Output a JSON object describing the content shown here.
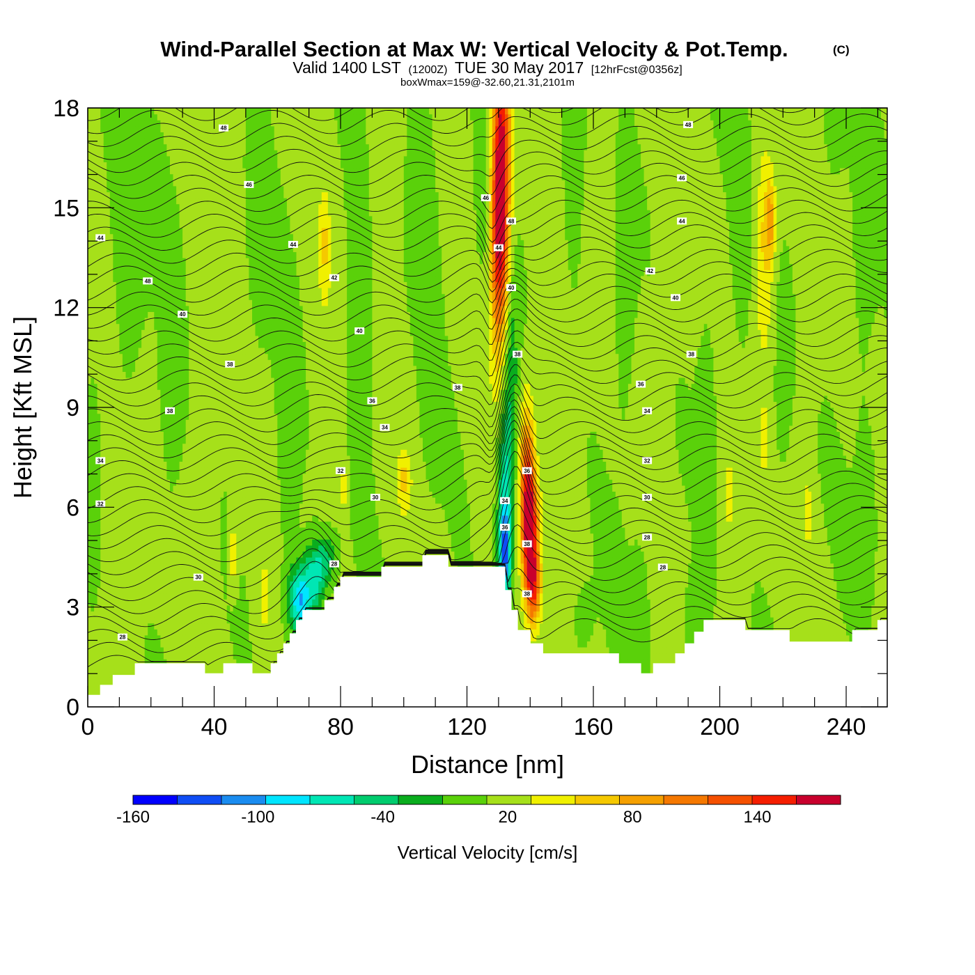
{
  "title": {
    "main": "Wind-Parallel Section at Max W: Vertical Velocity & Pot.Temp.",
    "copyright": "(C)",
    "valid_a": "Valid 1400 LST",
    "valid_b": "(1200Z)",
    "valid_c": "TUE 30 May 2017",
    "valid_d": "[12hrFcst@0356z]",
    "box": "boxWmax=159@-32.60,21.31,2101m"
  },
  "chart_data": {
    "type": "heatmap",
    "title": "Wind-Parallel Section at Max W: Vertical Velocity & Pot.Temp.",
    "xlabel": "Distance [nm]",
    "ylabel": "Height [Kft MSL]",
    "xlim": [
      0,
      253
    ],
    "ylim": [
      0,
      18
    ],
    "x_ticks": [
      0,
      40,
      80,
      120,
      160,
      200,
      240
    ],
    "y_ticks": [
      0,
      3,
      6,
      9,
      12,
      15,
      18
    ],
    "x_tick_labels": [
      "0",
      "40",
      "80",
      "120",
      "160",
      "200",
      "240"
    ],
    "y_tick_labels": [
      "0",
      "3",
      "6",
      "9",
      "12",
      "15",
      "18"
    ],
    "colorbar": {
      "title": "Vertical Velocity [cm/s]",
      "bounds": [
        -160,
        180
      ],
      "step": 20,
      "tick_values": [
        -160,
        -100,
        -40,
        20,
        80,
        140
      ],
      "tick_labels": [
        "-160",
        "-100",
        "-40",
        "20",
        "80",
        "140"
      ],
      "colors": [
        "#0000ff",
        "#0f4df5",
        "#1a8cf0",
        "#00e5ff",
        "#00e6b4",
        "#00cc6e",
        "#0aad1e",
        "#5ad10a",
        "#a6e01a",
        "#f0f000",
        "#f5c800",
        "#f5a000",
        "#f57800",
        "#f55000",
        "#f51e00",
        "#c8002d"
      ]
    },
    "background_w": 5,
    "terrain_kft": [
      [
        0,
        0.35
      ],
      [
        4,
        0.35
      ],
      [
        4,
        0.65
      ],
      [
        8,
        0.65
      ],
      [
        8,
        0.95
      ],
      [
        15,
        0.95
      ],
      [
        15,
        1.3
      ],
      [
        37,
        1.3
      ],
      [
        37,
        1.0
      ],
      [
        43,
        1.0
      ],
      [
        43,
        1.3
      ],
      [
        52,
        1.3
      ],
      [
        52,
        1.0
      ],
      [
        58,
        1.0
      ],
      [
        58,
        1.3
      ],
      [
        60,
        1.3
      ],
      [
        60,
        1.6
      ],
      [
        62,
        1.6
      ],
      [
        62,
        1.9
      ],
      [
        64,
        1.9
      ],
      [
        64,
        2.2
      ],
      [
        66,
        2.2
      ],
      [
        66,
        2.6
      ],
      [
        68,
        2.6
      ],
      [
        68,
        2.9
      ],
      [
        75,
        2.9
      ],
      [
        75,
        3.2
      ],
      [
        78,
        3.2
      ],
      [
        78,
        3.6
      ],
      [
        80,
        3.6
      ],
      [
        80,
        3.9
      ],
      [
        93,
        3.9
      ],
      [
        93,
        4.2
      ],
      [
        106,
        4.2
      ],
      [
        106,
        4.55
      ],
      [
        114,
        4.55
      ],
      [
        114,
        4.2
      ],
      [
        132,
        4.2
      ],
      [
        132,
        3.5
      ],
      [
        134,
        3.5
      ],
      [
        134,
        2.9
      ],
      [
        136,
        2.9
      ],
      [
        136,
        2.3
      ],
      [
        140,
        2.3
      ],
      [
        140,
        1.9
      ],
      [
        144,
        1.9
      ],
      [
        144,
        1.6
      ],
      [
        168,
        1.6
      ],
      [
        168,
        1.3
      ],
      [
        175,
        1.3
      ],
      [
        175,
        1.0
      ],
      [
        179,
        1.0
      ],
      [
        179,
        1.3
      ],
      [
        186,
        1.3
      ],
      [
        186,
        1.6
      ],
      [
        189,
        1.6
      ],
      [
        189,
        1.9
      ],
      [
        192,
        1.9
      ],
      [
        192,
        2.25
      ],
      [
        195,
        2.25
      ],
      [
        195,
        2.6
      ],
      [
        208,
        2.6
      ],
      [
        208,
        2.3
      ],
      [
        222,
        2.3
      ],
      [
        222,
        1.95
      ],
      [
        242,
        1.95
      ],
      [
        242,
        2.3
      ],
      [
        250,
        2.3
      ],
      [
        250,
        2.6
      ],
      [
        253,
        2.6
      ]
    ],
    "w_features": [
      {
        "x": 131,
        "y": 16.5,
        "w": 130,
        "sx": 2.0,
        "sy": 2.8
      },
      {
        "x": 130,
        "y": 14.0,
        "w": 90,
        "sx": 1.8,
        "sy": 2.5
      },
      {
        "x": 140,
        "y": 5.2,
        "w": 155,
        "sx": 1.8,
        "sy": 1.2
      },
      {
        "x": 139,
        "y": 7.2,
        "w": 90,
        "sx": 1.6,
        "sy": 1.4
      },
      {
        "x": 141,
        "y": 3.5,
        "w": 90,
        "sx": 1.6,
        "sy": 0.8
      },
      {
        "x": 132,
        "y": 4.6,
        "w": -115,
        "sx": 1.4,
        "sy": 1.0
      },
      {
        "x": 132,
        "y": 6.8,
        "w": -65,
        "sx": 1.7,
        "sy": 1.6
      },
      {
        "x": 134,
        "y": 10.0,
        "w": -40,
        "sx": 1.5,
        "sy": 2.2
      },
      {
        "x": 67,
        "y": 3.2,
        "w": -100,
        "sx": 2.4,
        "sy": 0.7
      },
      {
        "x": 72,
        "y": 3.9,
        "w": -70,
        "sx": 2.4,
        "sy": 0.7
      },
      {
        "x": 76,
        "y": 4.5,
        "w": -40,
        "sx": 2.2,
        "sy": 0.5
      },
      {
        "x": 46,
        "y": 4.6,
        "w": 35,
        "sx": 1.0,
        "sy": 0.7
      },
      {
        "x": 56,
        "y": 3.3,
        "w": 35,
        "sx": 0.9,
        "sy": 0.6
      },
      {
        "x": 75,
        "y": 13.8,
        "w": 35,
        "sx": 1.2,
        "sy": 1.1
      },
      {
        "x": 81,
        "y": 6.6,
        "w": 35,
        "sx": 1.0,
        "sy": 0.4
      },
      {
        "x": 100,
        "y": 6.8,
        "w": 35,
        "sx": 1.5,
        "sy": 0.6
      },
      {
        "x": 214,
        "y": 13.5,
        "w": 35,
        "sx": 2.0,
        "sy": 2.2
      },
      {
        "x": 216,
        "y": 14.6,
        "w": 55,
        "sx": 1.2,
        "sy": 0.8
      },
      {
        "x": 203,
        "y": 6.4,
        "w": 30,
        "sx": 0.9,
        "sy": 0.8
      },
      {
        "x": 228,
        "y": 5.9,
        "w": 30,
        "sx": 0.9,
        "sy": 0.6
      },
      {
        "x": 214,
        "y": 8.0,
        "w": 30,
        "sx": 1.0,
        "sy": 0.7
      },
      {
        "x": 20,
        "y": 16.5,
        "w": -15,
        "sx": 4.0,
        "sy": 2.0
      },
      {
        "x": 27,
        "y": 10.5,
        "w": -15,
        "sx": 3.0,
        "sy": 4.0
      },
      {
        "x": 12,
        "y": 14.0,
        "w": -15,
        "sx": 2.5,
        "sy": 3.0
      },
      {
        "x": 54,
        "y": 14.0,
        "w": -15,
        "sx": 3.0,
        "sy": 3.0
      },
      {
        "x": 63,
        "y": 8.0,
        "w": -15,
        "sx": 2.5,
        "sy": 3.5
      },
      {
        "x": 86,
        "y": 11.0,
        "w": -15,
        "sx": 3.0,
        "sy": 4.0
      },
      {
        "x": 108,
        "y": 12.0,
        "w": -15,
        "sx": 2.5,
        "sy": 4.0
      },
      {
        "x": 125,
        "y": 16.0,
        "w": -20,
        "sx": 2.0,
        "sy": 2.5
      },
      {
        "x": 152,
        "y": 14.5,
        "w": -15,
        "sx": 3.0,
        "sy": 3.0
      },
      {
        "x": 170,
        "y": 12.5,
        "w": -20,
        "sx": 2.5,
        "sy": 3.5
      },
      {
        "x": 175,
        "y": 3.0,
        "w": -15,
        "sx": 2.5,
        "sy": 2.0
      },
      {
        "x": 196,
        "y": 8.5,
        "w": -15,
        "sx": 2.5,
        "sy": 4.0
      },
      {
        "x": 207,
        "y": 15.0,
        "w": -18,
        "sx": 2.0,
        "sy": 2.5
      },
      {
        "x": 220,
        "y": 10.0,
        "w": -15,
        "sx": 2.5,
        "sy": 3.0
      },
      {
        "x": 245,
        "y": 13.0,
        "w": -15,
        "sx": 3.0,
        "sy": 4.0
      },
      {
        "x": 247,
        "y": 6.0,
        "w": -15,
        "sx": 2.5,
        "sy": 2.0
      },
      {
        "x": 193,
        "y": 2.5,
        "w": -15,
        "sx": 3.0,
        "sy": 1.0
      },
      {
        "x": 156,
        "y": 2.5,
        "w": -15,
        "sx": 3.0,
        "sy": 1.0
      },
      {
        "x": 103,
        "y": 15.5,
        "w": -12,
        "sx": 2.5,
        "sy": 2.5
      },
      {
        "x": 2,
        "y": 8.0,
        "w": -12,
        "sx": 2.0,
        "sy": 3.0
      },
      {
        "x": 236,
        "y": 17.5,
        "w": -15,
        "sx": 3.0,
        "sy": 1.5
      },
      {
        "x": 94,
        "y": 15.5,
        "w": 10,
        "sx": 3.0,
        "sy": 2.5
      },
      {
        "x": 150,
        "y": 12.0,
        "w": 10,
        "sx": 3.0,
        "sy": 3.0
      },
      {
        "x": 230,
        "y": 14.0,
        "w": 10,
        "sx": 3.0,
        "sy": 3.0
      },
      {
        "x": 40,
        "y": 12.0,
        "w": 10,
        "sx": 3.5,
        "sy": 4.0
      },
      {
        "x": 184,
        "y": 14.0,
        "w": 10,
        "sx": 3.0,
        "sy": 3.0
      }
    ],
    "theta_contours": {
      "count": 44,
      "left_base_kft": 1.2,
      "left_spacing_kft": 0.39,
      "right_base_kft": 2.3,
      "right_spacing_kft": 0.37
    },
    "contour_labels": [
      {
        "text": "48",
        "x": 43,
        "y": 17.4
      },
      {
        "text": "46",
        "x": 51,
        "y": 15.7
      },
      {
        "text": "44",
        "x": 4,
        "y": 14.1
      },
      {
        "text": "44",
        "x": 65,
        "y": 13.9
      },
      {
        "text": "42",
        "x": 78,
        "y": 12.9
      },
      {
        "text": "48",
        "x": 19,
        "y": 12.8
      },
      {
        "text": "40",
        "x": 30,
        "y": 11.8
      },
      {
        "text": "40",
        "x": 86,
        "y": 11.3
      },
      {
        "text": "38",
        "x": 45,
        "y": 10.3
      },
      {
        "text": "38",
        "x": 26,
        "y": 8.9
      },
      {
        "text": "36",
        "x": 90,
        "y": 9.2
      },
      {
        "text": "34",
        "x": 94,
        "y": 8.4
      },
      {
        "text": "34",
        "x": 4,
        "y": 7.4
      },
      {
        "text": "32",
        "x": 80,
        "y": 7.1
      },
      {
        "text": "30",
        "x": 91,
        "y": 6.3
      },
      {
        "text": "32",
        "x": 4,
        "y": 6.1
      },
      {
        "text": "30",
        "x": 35,
        "y": 3.9
      },
      {
        "text": "28",
        "x": 78,
        "y": 4.3
      },
      {
        "text": "28",
        "x": 11,
        "y": 2.1
      },
      {
        "text": "46",
        "x": 126,
        "y": 15.3
      },
      {
        "text": "44",
        "x": 130,
        "y": 13.8
      },
      {
        "text": "48",
        "x": 134,
        "y": 14.6
      },
      {
        "text": "40",
        "x": 134,
        "y": 12.6
      },
      {
        "text": "38",
        "x": 136,
        "y": 10.6
      },
      {
        "text": "38",
        "x": 117,
        "y": 9.6
      },
      {
        "text": "36",
        "x": 139,
        "y": 7.1
      },
      {
        "text": "34",
        "x": 132,
        "y": 6.2
      },
      {
        "text": "36",
        "x": 132,
        "y": 5.4
      },
      {
        "text": "38",
        "x": 139,
        "y": 4.9
      },
      {
        "text": "38",
        "x": 139,
        "y": 3.4
      },
      {
        "text": "48",
        "x": 190,
        "y": 17.5
      },
      {
        "text": "46",
        "x": 188,
        "y": 15.9
      },
      {
        "text": "44",
        "x": 188,
        "y": 14.6
      },
      {
        "text": "42",
        "x": 178,
        "y": 13.1
      },
      {
        "text": "40",
        "x": 186,
        "y": 12.3
      },
      {
        "text": "38",
        "x": 191,
        "y": 10.6
      },
      {
        "text": "36",
        "x": 175,
        "y": 9.7
      },
      {
        "text": "34",
        "x": 177,
        "y": 8.9
      },
      {
        "text": "32",
        "x": 177,
        "y": 7.4
      },
      {
        "text": "30",
        "x": 177,
        "y": 6.3
      },
      {
        "text": "28",
        "x": 177,
        "y": 5.1
      },
      {
        "text": "28",
        "x": 182,
        "y": 4.2
      }
    ]
  }
}
